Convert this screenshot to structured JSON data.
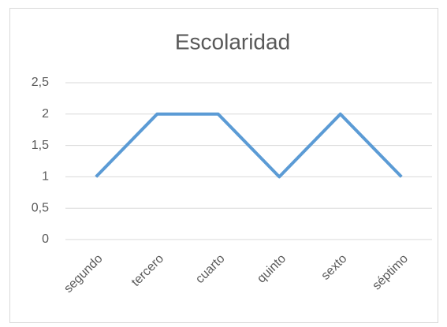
{
  "chart_data": {
    "type": "line",
    "title": "Escolaridad",
    "categories": [
      "segundo",
      "tercero",
      "cuarto",
      "quinto",
      "sexto",
      "séptimo"
    ],
    "values": [
      1,
      2,
      2,
      1,
      2,
      1
    ],
    "color": "#5b9bd5",
    "ylim": [
      0,
      2.5
    ],
    "yticks": [
      0,
      {
        "value": 0.5,
        "label": "0,5"
      },
      1,
      {
        "value": 1.5,
        "label": "1,5"
      },
      2,
      {
        "value": 2.5,
        "label": "2,5"
      }
    ],
    "grid": true
  }
}
